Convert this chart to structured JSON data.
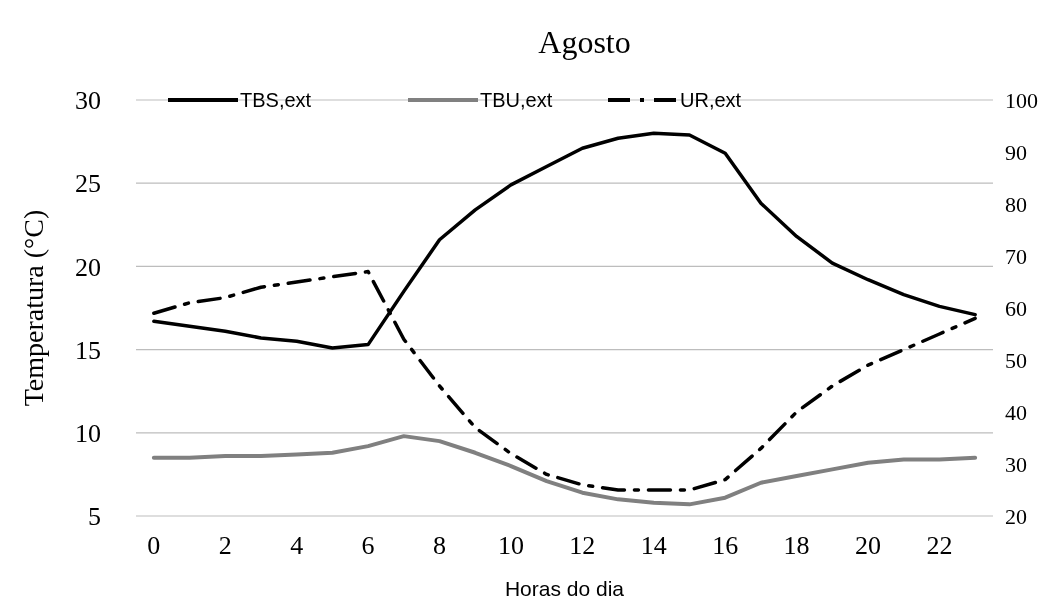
{
  "chart_data": {
    "type": "line",
    "title": "Agosto",
    "xlabel": "Horas do dia",
    "ylabel": "Temperatura  (°C)",
    "x": [
      0,
      1,
      2,
      3,
      4,
      5,
      6,
      7,
      8,
      9,
      10,
      11,
      12,
      13,
      14,
      15,
      16,
      17,
      18,
      19,
      20,
      21,
      22,
      23
    ],
    "xlim": [
      -0.5,
      23.5
    ],
    "xticks": [
      0,
      2,
      4,
      6,
      8,
      10,
      12,
      14,
      16,
      18,
      20,
      22
    ],
    "ylim": [
      5,
      30
    ],
    "yticks": [
      5,
      10,
      15,
      20,
      25,
      30
    ],
    "y2lim": [
      20,
      100
    ],
    "y2ticks": [
      20,
      30,
      40,
      50,
      60,
      70,
      80,
      90,
      100
    ],
    "grid": "y",
    "legend": "top",
    "marker": "none",
    "series": [
      {
        "name": "TBS,ext",
        "color": "#000000",
        "line_style": "solid",
        "values": [
          16.7,
          16.4,
          16.1,
          15.7,
          15.5,
          15.1,
          15.3,
          18.5,
          21.6,
          23.4,
          24.9,
          26.0,
          27.1,
          27.7,
          28.0,
          27.9,
          26.8,
          23.8,
          21.8,
          20.2,
          19.2,
          18.3,
          17.6,
          17.1
        ]
      },
      {
        "name": "TBU,ext",
        "color": "#808080",
        "line_style": "solid",
        "values": [
          8.5,
          8.5,
          8.6,
          8.6,
          8.7,
          8.8,
          9.2,
          9.8,
          9.5,
          8.8,
          8.0,
          7.1,
          6.4,
          6.0,
          5.8,
          5.7,
          6.1,
          7.0,
          7.4,
          7.8,
          8.2,
          8.4,
          8.4,
          8.5
        ]
      },
      {
        "name": "UR,ext",
        "color": "#000000",
        "line_style": "dashed",
        "axis": "y2",
        "values": [
          59,
          61,
          62,
          64,
          65,
          66,
          67,
          54,
          45,
          37,
          32,
          28,
          26,
          25,
          25,
          25,
          27,
          33,
          40,
          45,
          49,
          52,
          55,
          58
        ]
      }
    ]
  }
}
